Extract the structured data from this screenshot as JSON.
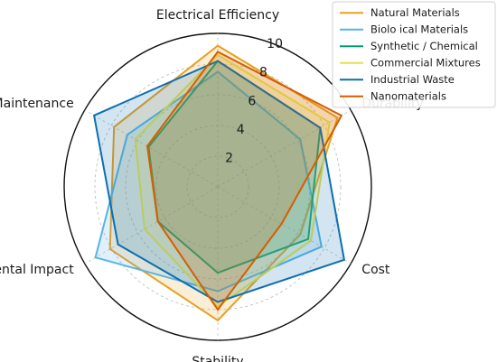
{
  "chart_data": {
    "type": "radar",
    "axes": [
      "Electrical Efficiency",
      "Durability",
      "Cost",
      "Stability",
      "Environmental Impact",
      "Maintenance"
    ],
    "rlim": [
      0,
      10
    ],
    "rticks": [
      2,
      4,
      6,
      8,
      10
    ],
    "rtick_labels": [
      "2",
      "4",
      "6",
      "8",
      "10"
    ],
    "grid": true,
    "legend_position": "top-right",
    "series": [
      {
        "name": "Natural Materials",
        "color": "#e8a020",
        "values": [
          9.2,
          9.0,
          6.2,
          8.7,
          8.1,
          7.8
        ]
      },
      {
        "name": "Biolo  ical Materials",
        "color": "#56b4e9",
        "values": [
          7.5,
          6.2,
          7.8,
          6.8,
          9.2,
          6.8
        ]
      },
      {
        "name": "Synthetic / Chemical",
        "color": "#009e73",
        "values": [
          8.2,
          7.7,
          6.8,
          5.6,
          4.5,
          5.2
        ]
      },
      {
        "name": "Commercial Mixtures",
        "color": "#e6e04a",
        "values": [
          8.6,
          8.4,
          7.0,
          7.8,
          5.5,
          6.2
        ]
      },
      {
        "name": "Industrial Waste",
        "color": "#0b6fb0",
        "values": [
          8.2,
          7.7,
          9.5,
          7.5,
          7.5,
          9.3
        ]
      },
      {
        "name": "Nanomaterials",
        "color": "#d55e00",
        "values": [
          8.8,
          9.3,
          4.8,
          8.0,
          4.5,
          5.3
        ]
      }
    ]
  }
}
